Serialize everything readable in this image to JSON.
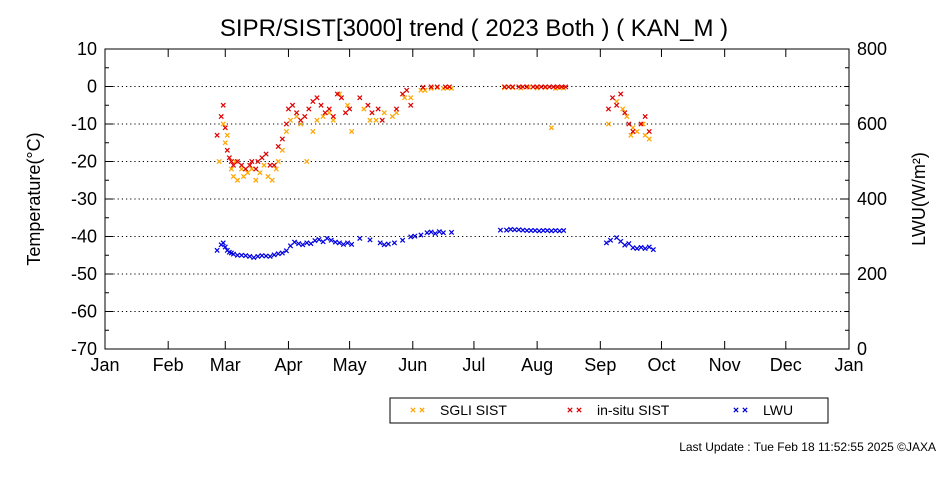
{
  "chart_data": {
    "type": "scatter",
    "title": "SIPR/SIST[3000] trend ( 2023 Both ) ( KAN_M )",
    "ylabel": "Temperature(°C)",
    "y2label": "LWU(W/m²)",
    "ylim": [
      -70,
      10
    ],
    "y2lim": [
      0,
      800
    ],
    "yticks": [
      "10",
      "0",
      "-10",
      "-20",
      "-30",
      "-40",
      "-50",
      "-60",
      "-70"
    ],
    "y2ticks": [
      "800",
      "600",
      "400",
      "200",
      "0"
    ],
    "xlim": [
      0,
      365
    ],
    "xticks": [
      {
        "label": "Jan",
        "day": 0
      },
      {
        "label": "Feb",
        "day": 31
      },
      {
        "label": "Mar",
        "day": 59
      },
      {
        "label": "Apr",
        "day": 90
      },
      {
        "label": "May",
        "day": 120
      },
      {
        "label": "Jun",
        "day": 151
      },
      {
        "label": "Jul",
        "day": 181
      },
      {
        "label": "Aug",
        "day": 212
      },
      {
        "label": "Sep",
        "day": 243
      },
      {
        "label": "Oct",
        "day": 273
      },
      {
        "label": "Nov",
        "day": 304
      },
      {
        "label": "Dec",
        "day": 334
      },
      {
        "label": "Jan",
        "day": 365
      }
    ],
    "grid": "horizontal-dotted",
    "legend_position": "bottom-right",
    "series": [
      {
        "name": "SGLI SIST",
        "color": "#ffa500",
        "axis": "left",
        "points": [
          [
            56,
            -20
          ],
          [
            58,
            -10
          ],
          [
            59,
            -15
          ],
          [
            60,
            -13
          ],
          [
            62,
            -22
          ],
          [
            63,
            -24
          ],
          [
            64,
            -20
          ],
          [
            65,
            -25
          ],
          [
            67,
            -22
          ],
          [
            68,
            -24
          ],
          [
            70,
            -23
          ],
          [
            72,
            -22
          ],
          [
            74,
            -25
          ],
          [
            76,
            -23
          ],
          [
            78,
            -21
          ],
          [
            80,
            -24
          ],
          [
            82,
            -25
          ],
          [
            84,
            -22
          ],
          [
            85,
            -20
          ],
          [
            87,
            -17
          ],
          [
            89,
            -12
          ],
          [
            91,
            -9
          ],
          [
            94,
            -8
          ],
          [
            96,
            -10
          ],
          [
            99,
            -20
          ],
          [
            102,
            -12
          ],
          [
            104,
            -9
          ],
          [
            107,
            -8
          ],
          [
            110,
            -7
          ],
          [
            112,
            -9
          ],
          [
            115,
            -2
          ],
          [
            119,
            -5
          ],
          [
            121,
            -12
          ],
          [
            127,
            -6
          ],
          [
            130,
            -9
          ],
          [
            133,
            -9
          ],
          [
            137,
            -7
          ],
          [
            141,
            -8
          ],
          [
            143,
            -7
          ],
          [
            147,
            -3
          ],
          [
            150,
            -3
          ],
          [
            155,
            -1
          ],
          [
            157,
            -1
          ],
          [
            160,
            -0.5
          ],
          [
            163,
            -0.3
          ],
          [
            166,
            -0.5
          ],
          [
            168,
            -0.4
          ],
          [
            170,
            -0.5
          ],
          [
            196,
            -0.3
          ],
          [
            200,
            -0.3
          ],
          [
            204,
            -0.4
          ],
          [
            208,
            -0.2
          ],
          [
            212,
            -0.4
          ],
          [
            216,
            -0.3
          ],
          [
            219,
            -11
          ],
          [
            221,
            -0.5
          ],
          [
            223,
            -0.3
          ],
          [
            225,
            -0.4
          ],
          [
            247,
            -10
          ],
          [
            251,
            -4
          ],
          [
            254,
            -6
          ],
          [
            256,
            -8
          ],
          [
            258,
            -13
          ],
          [
            259,
            -11
          ],
          [
            261,
            -12
          ],
          [
            264,
            -10
          ],
          [
            265,
            -13
          ],
          [
            267,
            -14
          ]
        ]
      },
      {
        "name": "in-situ SIST",
        "color": "#e00000",
        "axis": "left",
        "points": [
          [
            55,
            -13
          ],
          [
            57,
            -8
          ],
          [
            58,
            -5
          ],
          [
            59,
            -11
          ],
          [
            60,
            -17
          ],
          [
            61,
            -19
          ],
          [
            62,
            -20
          ],
          [
            63,
            -21
          ],
          [
            65,
            -20
          ],
          [
            67,
            -21
          ],
          [
            69,
            -22
          ],
          [
            71,
            -21
          ],
          [
            72,
            -20
          ],
          [
            74,
            -22
          ],
          [
            75,
            -20
          ],
          [
            77,
            -19
          ],
          [
            79,
            -18
          ],
          [
            81,
            -21
          ],
          [
            83,
            -21
          ],
          [
            85,
            -16
          ],
          [
            87,
            -14
          ],
          [
            89,
            -10
          ],
          [
            90,
            -6
          ],
          [
            92,
            -5
          ],
          [
            94,
            -7
          ],
          [
            96,
            -9
          ],
          [
            98,
            -8
          ],
          [
            100,
            -6
          ],
          [
            102,
            -4
          ],
          [
            104,
            -3
          ],
          [
            106,
            -5
          ],
          [
            108,
            -7
          ],
          [
            110,
            -6
          ],
          [
            112,
            -8
          ],
          [
            114,
            -2
          ],
          [
            116,
            -3
          ],
          [
            118,
            -7
          ],
          [
            120,
            -6
          ],
          [
            125,
            -3
          ],
          [
            129,
            -5
          ],
          [
            131,
            -7
          ],
          [
            134,
            -6
          ],
          [
            136,
            -9
          ],
          [
            143,
            -6
          ],
          [
            146,
            -2
          ],
          [
            148,
            -1
          ],
          [
            150,
            -5
          ],
          [
            156,
            -0.2
          ],
          [
            160,
            -0.1
          ],
          [
            163,
            -0.1
          ],
          [
            167,
            -0.1
          ],
          [
            169,
            -0.1
          ],
          [
            196,
            -0.1
          ],
          [
            198,
            -0.1
          ],
          [
            200,
            -0.1
          ],
          [
            203,
            -0.1
          ],
          [
            205,
            -0.1
          ],
          [
            207,
            -0.1
          ],
          [
            210,
            -0.1
          ],
          [
            212,
            -0.1
          ],
          [
            214,
            -0.1
          ],
          [
            216,
            -0.1
          ],
          [
            218,
            -0.1
          ],
          [
            220,
            -0.1
          ],
          [
            222,
            -0.1
          ],
          [
            224,
            -0.1
          ],
          [
            226,
            -0.1
          ],
          [
            247,
            -6
          ],
          [
            249,
            -3
          ],
          [
            251,
            -5
          ],
          [
            253,
            -2
          ],
          [
            255,
            -7
          ],
          [
            257,
            -10
          ],
          [
            259,
            -12
          ],
          [
            263,
            -10
          ],
          [
            265,
            -8
          ],
          [
            267,
            -12
          ]
        ]
      },
      {
        "name": "LWU",
        "color": "#0000e0",
        "axis": "right",
        "points": [
          [
            55,
            263
          ],
          [
            57,
            278
          ],
          [
            58,
            283
          ],
          [
            59,
            272
          ],
          [
            60,
            263
          ],
          [
            61,
            258
          ],
          [
            62,
            256
          ],
          [
            63,
            253
          ],
          [
            65,
            250
          ],
          [
            67,
            250
          ],
          [
            69,
            249
          ],
          [
            71,
            247
          ],
          [
            73,
            244
          ],
          [
            75,
            247
          ],
          [
            77,
            249
          ],
          [
            79,
            248
          ],
          [
            81,
            247
          ],
          [
            83,
            251
          ],
          [
            85,
            254
          ],
          [
            87,
            256
          ],
          [
            89,
            262
          ],
          [
            91,
            275
          ],
          [
            93,
            285
          ],
          [
            95,
            281
          ],
          [
            97,
            278
          ],
          [
            99,
            283
          ],
          [
            101,
            281
          ],
          [
            103,
            289
          ],
          [
            105,
            292
          ],
          [
            107,
            286
          ],
          [
            109,
            295
          ],
          [
            111,
            290
          ],
          [
            113,
            285
          ],
          [
            115,
            283
          ],
          [
            117,
            279
          ],
          [
            119,
            283
          ],
          [
            121,
            279
          ],
          [
            125,
            295
          ],
          [
            130,
            291
          ],
          [
            135,
            283
          ],
          [
            137,
            278
          ],
          [
            139,
            280
          ],
          [
            142,
            283
          ],
          [
            146,
            290
          ],
          [
            150,
            299
          ],
          [
            152,
            301
          ],
          [
            155,
            304
          ],
          [
            158,
            310
          ],
          [
            160,
            312
          ],
          [
            162,
            308
          ],
          [
            164,
            313
          ],
          [
            166,
            310
          ],
          [
            170,
            311
          ],
          [
            194,
            317
          ],
          [
            197,
            317
          ],
          [
            199,
            319
          ],
          [
            201,
            318
          ],
          [
            203,
            318
          ],
          [
            205,
            317
          ],
          [
            207,
            316
          ],
          [
            209,
            316
          ],
          [
            211,
            316
          ],
          [
            213,
            315
          ],
          [
            215,
            316
          ],
          [
            217,
            316
          ],
          [
            219,
            315
          ],
          [
            221,
            316
          ],
          [
            223,
            315
          ],
          [
            225,
            316
          ],
          [
            246,
            283
          ],
          [
            248,
            290
          ],
          [
            251,
            297
          ],
          [
            253,
            287
          ],
          [
            255,
            277
          ],
          [
            257,
            281
          ],
          [
            259,
            270
          ],
          [
            261,
            268
          ],
          [
            263,
            271
          ],
          [
            265,
            268
          ],
          [
            267,
            272
          ],
          [
            269,
            265
          ]
        ]
      }
    ]
  },
  "footer": {
    "last_update": "Last Update : Tue Feb 18 11:52:55 2025  ©JAXA"
  }
}
